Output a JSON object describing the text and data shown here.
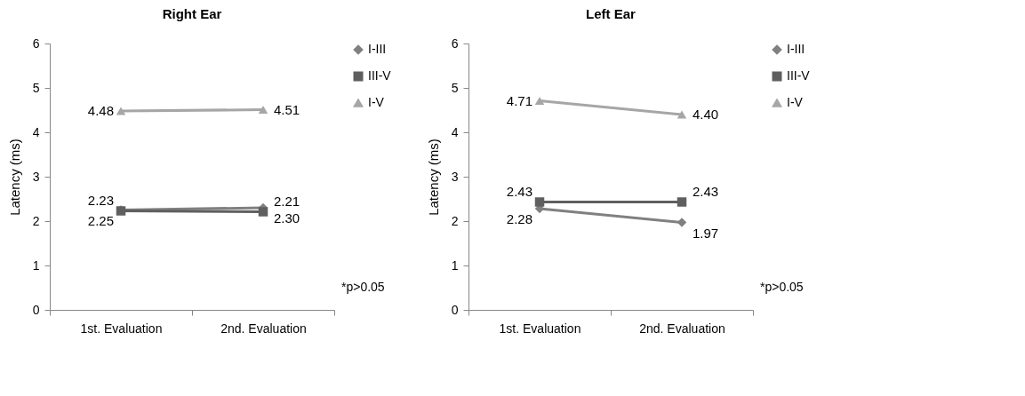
{
  "chart_data": [
    {
      "type": "line",
      "title": "Right Ear",
      "ylabel": "Latency (ms)",
      "categories": [
        "1st. Evaluation",
        "2nd. Evaluation"
      ],
      "ylim": [
        0,
        6
      ],
      "yticks": [
        0,
        1,
        2,
        3,
        4,
        5,
        6
      ],
      "grid": false,
      "legend": "right",
      "annotations": [
        "*p>0.05"
      ],
      "series": [
        {
          "name": "I-III",
          "color": "#808080",
          "marker": "diamond",
          "values": [
            2.25,
            2.3
          ],
          "value_labels": [
            "2.25",
            "2.30"
          ]
        },
        {
          "name": "III-V",
          "color": "#5f5f5f",
          "marker": "square",
          "values": [
            2.23,
            2.21
          ],
          "value_labels": [
            "2.23",
            "2.21"
          ]
        },
        {
          "name": "I-V",
          "color": "#a6a6a6",
          "marker": "triangle",
          "values": [
            4.48,
            4.51
          ],
          "value_labels": [
            "4.48",
            "4.51"
          ]
        }
      ]
    },
    {
      "type": "line",
      "title": "Left Ear",
      "ylabel": "Latency (ms)",
      "categories": [
        "1st. Evaluation",
        "2nd. Evaluation"
      ],
      "ylim": [
        0,
        6
      ],
      "yticks": [
        0,
        1,
        2,
        3,
        4,
        5,
        6
      ],
      "grid": false,
      "legend": "right",
      "annotations": [
        "*p>0.05"
      ],
      "series": [
        {
          "name": "I-III",
          "color": "#808080",
          "marker": "diamond",
          "values": [
            2.28,
            1.97
          ],
          "value_labels": [
            "2.28",
            "1.97"
          ]
        },
        {
          "name": "III-V",
          "color": "#5f5f5f",
          "marker": "square",
          "values": [
            2.43,
            2.43
          ],
          "value_labels": [
            "2.43",
            "2.43"
          ]
        },
        {
          "name": "I-V",
          "color": "#a6a6a6",
          "marker": "triangle",
          "values": [
            4.71,
            4.4
          ],
          "value_labels": [
            "4.71",
            "4.40"
          ]
        }
      ]
    }
  ]
}
